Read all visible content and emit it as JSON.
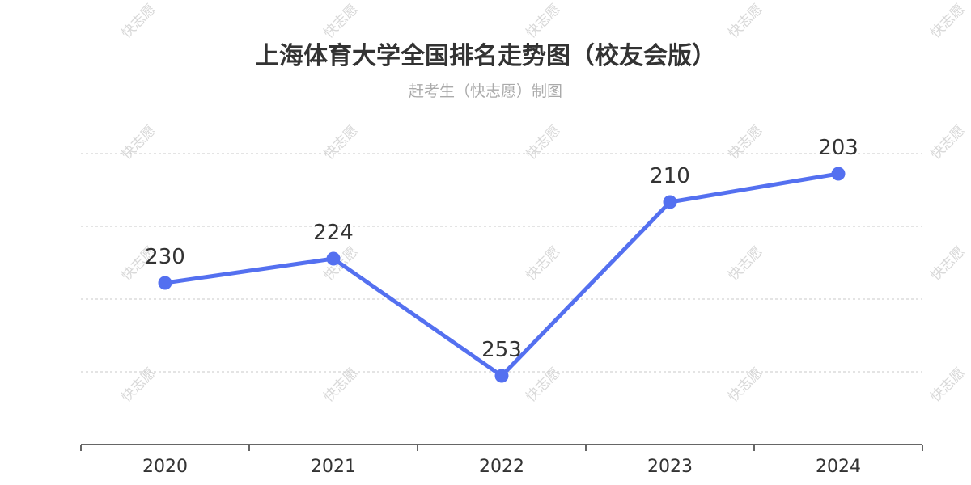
{
  "title": "上海体育大学全国排名走势图（校友会版）",
  "subtitle": "赶考生（快志愿）制图",
  "watermark": "快志愿",
  "chart_data": {
    "type": "line",
    "categories": [
      "2020",
      "2021",
      "2022",
      "2023",
      "2024"
    ],
    "series": [
      {
        "values": [
          230,
          224,
          253,
          210,
          203
        ],
        "color": "#5470f0"
      }
    ],
    "y_inverted": true,
    "ylim": [
      270,
      198
    ],
    "grid": true,
    "data_labels": true,
    "xlabel": "",
    "ylabel": ""
  }
}
